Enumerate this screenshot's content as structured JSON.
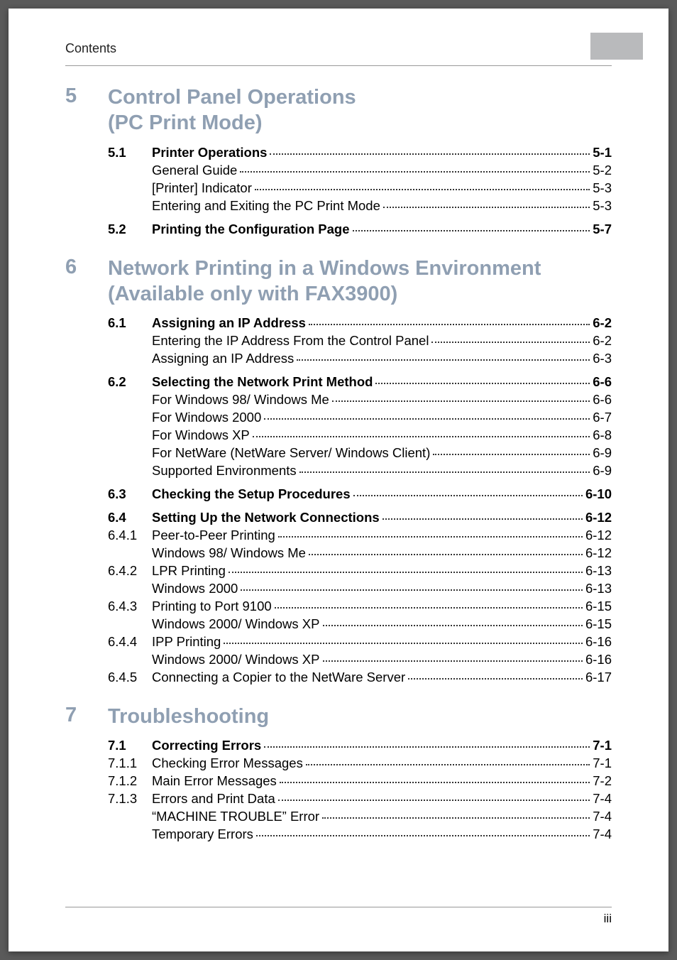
{
  "header_label": "Contents",
  "footer_page": "iii",
  "chapters": [
    {
      "num": "5",
      "title": "Control Panel Operations\n(PC Print Mode)",
      "entries": [
        {
          "type": "section",
          "num": "5.1",
          "label": "Printer Operations",
          "page": "5-1"
        },
        {
          "type": "leaf",
          "label": "General Guide",
          "page": "5-2"
        },
        {
          "type": "leaf",
          "label": "[Printer] Indicator",
          "page": "5-3"
        },
        {
          "type": "leaf",
          "label": "Entering and Exiting the PC Print Mode",
          "page": "5-3"
        },
        {
          "type": "section",
          "num": "5.2",
          "label": "Printing the Configuration Page",
          "page": "5-7"
        }
      ]
    },
    {
      "num": "6",
      "title": "Network Printing in a Windows Environment\n(Available only with FAX3900)",
      "entries": [
        {
          "type": "section",
          "num": "6.1",
          "label": "Assigning an IP Address",
          "page": "6-2"
        },
        {
          "type": "leaf",
          "label": "Entering the IP Address From the Control Panel",
          "page": "6-2"
        },
        {
          "type": "leaf",
          "label": "Assigning an IP Address",
          "page": "6-3"
        },
        {
          "type": "section",
          "num": "6.2",
          "label": "Selecting the Network Print Method",
          "page": "6-6"
        },
        {
          "type": "leaf",
          "label": "For Windows 98/ Windows Me",
          "page": "6-6"
        },
        {
          "type": "leaf",
          "label": "For Windows 2000",
          "page": "6-7"
        },
        {
          "type": "leaf",
          "label": "For Windows XP",
          "page": "6-8"
        },
        {
          "type": "leaf",
          "label": "For NetWare (NetWare Server/ Windows Client)",
          "page": "6-9"
        },
        {
          "type": "leaf",
          "label": "Supported Environments",
          "page": "6-9"
        },
        {
          "type": "section",
          "num": "6.3",
          "label": "Checking the Setup Procedures",
          "page": "6-10"
        },
        {
          "type": "section",
          "num": "6.4",
          "label": "Setting Up the Network Connections",
          "page": "6-12"
        },
        {
          "type": "sub",
          "num": "6.4.1",
          "label": "Peer-to-Peer Printing",
          "page": "6-12"
        },
        {
          "type": "leaf",
          "label": "Windows 98/ Windows Me",
          "page": "6-12"
        },
        {
          "type": "sub",
          "num": "6.4.2",
          "label": "LPR Printing",
          "page": "6-13"
        },
        {
          "type": "leaf",
          "label": "Windows 2000",
          "page": "6-13"
        },
        {
          "type": "sub",
          "num": "6.4.3",
          "label": "Printing to Port 9100",
          "page": "6-15"
        },
        {
          "type": "leaf",
          "label": "Windows 2000/ Windows XP",
          "page": "6-15"
        },
        {
          "type": "sub",
          "num": "6.4.4",
          "label": "IPP Printing",
          "page": "6-16"
        },
        {
          "type": "leaf",
          "label": "Windows 2000/ Windows XP",
          "page": "6-16"
        },
        {
          "type": "sub",
          "num": "6.4.5",
          "label": "Connecting a Copier to the NetWare Server",
          "page": "6-17"
        }
      ]
    },
    {
      "num": "7",
      "title": "Troubleshooting",
      "entries": [
        {
          "type": "section",
          "num": "7.1",
          "label": "Correcting Errors",
          "page": "7-1"
        },
        {
          "type": "sub",
          "num": "7.1.1",
          "label": "Checking Error Messages",
          "page": "7-1"
        },
        {
          "type": "sub",
          "num": "7.1.2",
          "label": "Main Error Messages",
          "page": "7-2"
        },
        {
          "type": "sub",
          "num": "7.1.3",
          "label": "Errors and Print Data",
          "page": "7-4"
        },
        {
          "type": "leaf",
          "label": "“MACHINE TROUBLE” Error",
          "page": "7-4"
        },
        {
          "type": "leaf",
          "label": "Temporary Errors",
          "page": "7-4"
        }
      ]
    }
  ]
}
